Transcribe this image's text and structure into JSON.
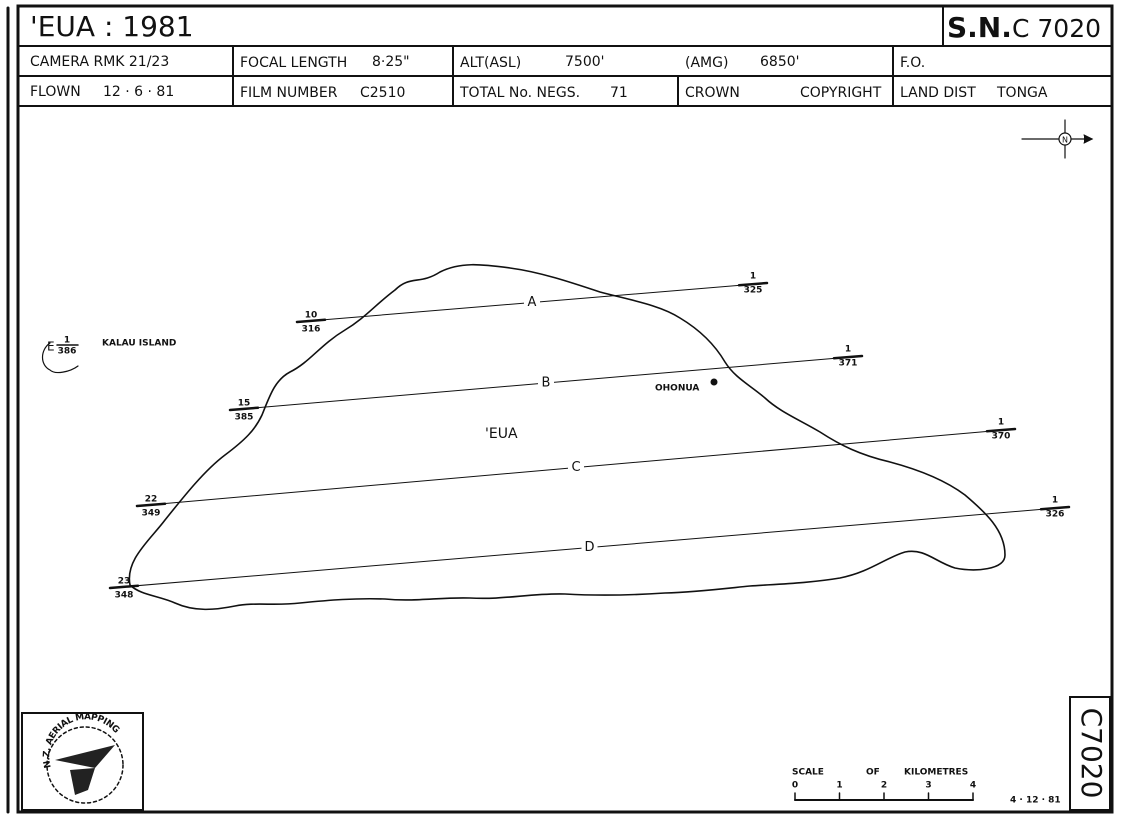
{
  "header": {
    "title": "'EUA : 1981",
    "sheet_prefix": "S.N.",
    "sheet_number": "C 7020"
  },
  "info": {
    "row1": [
      {
        "label": "CAMERA RMK 21/23"
      },
      {
        "label": "FOCAL LENGTH",
        "value": "8·25\""
      },
      {
        "label": "ALT(ASL)",
        "value": "7500'"
      },
      {
        "label": "(AMG)",
        "value": "6850'"
      },
      {
        "label": "F.O."
      }
    ],
    "row2": [
      {
        "label": "FLOWN",
        "value": "12 · 6 · 81"
      },
      {
        "label": "FILM NUMBER",
        "value": "C2510"
      },
      {
        "label": "TOTAL No. NEGS.",
        "value": "71"
      },
      {
        "label": "CROWN",
        "value": "COPYRIGHT"
      },
      {
        "label": "LAND DIST",
        "value": "TONGA"
      }
    ]
  },
  "map": {
    "island": "'EUA",
    "town": "OHONUA",
    "kalau": {
      "name": "KALAU ISLAND",
      "run": "E",
      "top": "1",
      "bottom": "386"
    },
    "runs": [
      {
        "letter": "A",
        "start": {
          "top": "10",
          "bottom": "316"
        },
        "end": {
          "top": "1",
          "bottom": "325"
        }
      },
      {
        "letter": "B",
        "start": {
          "top": "15",
          "bottom": "385"
        },
        "end": {
          "top": "1",
          "bottom": "371"
        }
      },
      {
        "letter": "C",
        "start": {
          "top": "22",
          "bottom": "349"
        },
        "end": {
          "top": "1",
          "bottom": "370"
        }
      },
      {
        "letter": "D",
        "start": {
          "top": "23",
          "bottom": "348"
        },
        "end": {
          "top": "1",
          "bottom": "326"
        }
      }
    ]
  },
  "scale": {
    "words": [
      "SCALE",
      "OF",
      "KILOMETRES"
    ],
    "ticks": [
      "0",
      "1",
      "2",
      "3",
      "4"
    ]
  },
  "footer": {
    "date": "4 · 12 · 81",
    "side_label": "C7020",
    "logo": "N.Z. AERIAL MAPPING"
  }
}
